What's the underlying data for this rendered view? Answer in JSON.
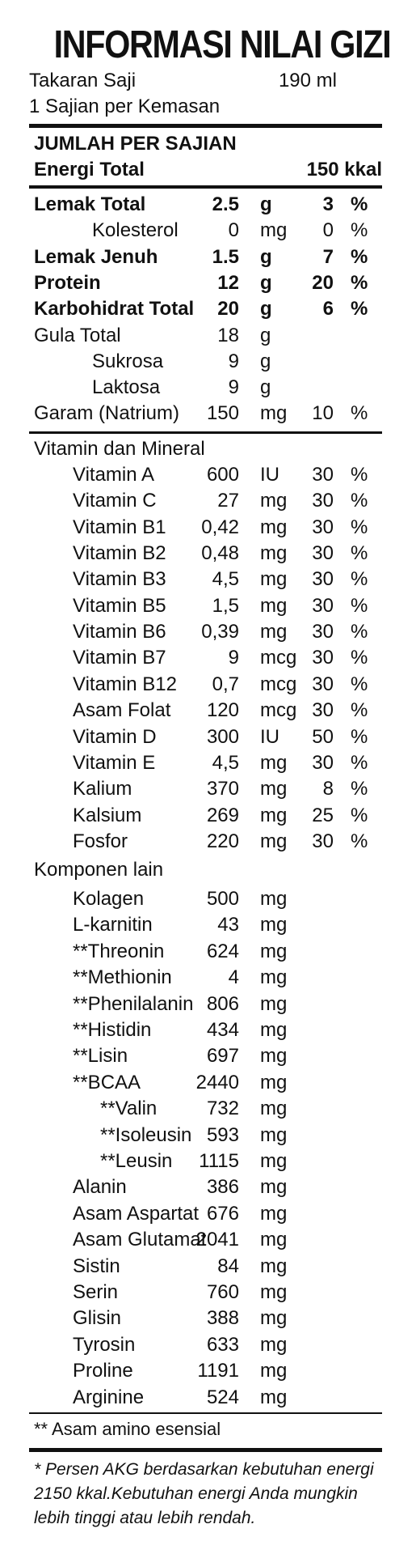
{
  "title": "INFORMASI NILAI GIZI",
  "serving": {
    "takaran_label": "Takaran Saji",
    "takaran_value": "190 ml",
    "sajian_label": "1 Sajian per Kemasan"
  },
  "jumlah_header": "JUMLAH PER SAJIAN",
  "energi": {
    "label": "Energi Total",
    "value": "150 kkal"
  },
  "main_rows": [
    {
      "label": "Lemak Total",
      "num": "2.5",
      "unit": "g",
      "pct": "3",
      "sign": "%",
      "bold": true,
      "indent": 0
    },
    {
      "label": "Kolesterol",
      "num": "0",
      "unit": "mg",
      "pct": "0",
      "sign": "%",
      "bold": false,
      "indent": 2
    },
    {
      "label": "Lemak Jenuh",
      "num": "1.5",
      "unit": "g",
      "pct": "7",
      "sign": "%",
      "bold": true,
      "indent": 0
    },
    {
      "label": "Protein",
      "num": "12",
      "unit": "g",
      "pct": "20",
      "sign": "%",
      "bold": true,
      "indent": 0
    },
    {
      "label": "Karbohidrat Total",
      "num": "20",
      "unit": "g",
      "pct": "6",
      "sign": "%",
      "bold": true,
      "indent": 0
    },
    {
      "label": "Gula Total",
      "num": "18",
      "unit": "g",
      "pct": "",
      "sign": "",
      "bold": false,
      "indent": 0
    },
    {
      "label": "Sukrosa",
      "num": "9",
      "unit": "g",
      "pct": "",
      "sign": "",
      "bold": false,
      "indent": 3
    },
    {
      "label": "Laktosa",
      "num": "9",
      "unit": "g",
      "pct": "",
      "sign": "",
      "bold": false,
      "indent": 3
    },
    {
      "label": "Garam (Natrium)",
      "num": "150",
      "unit": "mg",
      "pct": "10",
      "sign": "%",
      "bold": false,
      "indent": 0
    }
  ],
  "vitamin_header": "Vitamin dan Mineral",
  "vitamins": [
    {
      "label": "Vitamin A",
      "num": "600",
      "unit": "IU",
      "pct": "30",
      "sign": "%"
    },
    {
      "label": "Vitamin C",
      "num": "27",
      "unit": "mg",
      "pct": "30",
      "sign": "%"
    },
    {
      "label": "Vitamin B1",
      "num": "0,42",
      "unit": "mg",
      "pct": "30",
      "sign": "%"
    },
    {
      "label": "Vitamin B2",
      "num": "0,48",
      "unit": "mg",
      "pct": "30",
      "sign": "%"
    },
    {
      "label": "Vitamin B3",
      "num": "4,5",
      "unit": "mg",
      "pct": "30",
      "sign": "%"
    },
    {
      "label": "Vitamin B5",
      "num": "1,5",
      "unit": "mg",
      "pct": "30",
      "sign": "%"
    },
    {
      "label": "Vitamin B6",
      "num": "0,39",
      "unit": "mg",
      "pct": "30",
      "sign": "%"
    },
    {
      "label": "Vitamin B7",
      "num": "9",
      "unit": "mcg",
      "pct": "30",
      "sign": "%"
    },
    {
      "label": "Vitamin B12",
      "num": "0,7",
      "unit": "mcg",
      "pct": "30",
      "sign": "%"
    },
    {
      "label": "Asam Folat",
      "num": "120",
      "unit": "mcg",
      "pct": "30",
      "sign": "%"
    },
    {
      "label": "Vitamin D",
      "num": "300",
      "unit": "IU",
      "pct": "50",
      "sign": "%"
    },
    {
      "label": "Vitamin E",
      "num": "4,5",
      "unit": "mg",
      "pct": "30",
      "sign": "%"
    },
    {
      "label": "Kalium",
      "num": "370",
      "unit": "mg",
      "pct": "8",
      "sign": "%"
    },
    {
      "label": "Kalsium",
      "num": "269",
      "unit": "mg",
      "pct": "25",
      "sign": "%"
    },
    {
      "label": "Fosfor",
      "num": "220",
      "unit": "mg",
      "pct": "30",
      "sign": "%"
    }
  ],
  "komponen_header": "Komponen lain",
  "komponen": [
    {
      "label": "Kolagen",
      "num": "500",
      "unit": "mg",
      "indent": 1
    },
    {
      "label": "L-karnitin",
      "num": "43",
      "unit": "mg",
      "indent": 1
    },
    {
      "label": "**Threonin",
      "num": "624",
      "unit": "mg",
      "indent": 1
    },
    {
      "label": "**Methionin",
      "num": "4",
      "unit": "mg",
      "indent": 1
    },
    {
      "label": "**Phenilalanin",
      "num": "806",
      "unit": "mg",
      "indent": 1
    },
    {
      "label": "**Histidin",
      "num": "434",
      "unit": "mg",
      "indent": 1
    },
    {
      "label": "**Lisin",
      "num": "697",
      "unit": "mg",
      "indent": 1
    },
    {
      "label": "**BCAA",
      "num": "2440",
      "unit": "mg",
      "indent": 1
    },
    {
      "label": "**Valin",
      "num": "732",
      "unit": "mg",
      "indent": 2
    },
    {
      "label": "**Isoleusin",
      "num": "593",
      "unit": "mg",
      "indent": 2
    },
    {
      "label": "**Leusin",
      "num": "1115",
      "unit": "mg",
      "indent": 2
    },
    {
      "label": "Alanin",
      "num": "386",
      "unit": "mg",
      "indent": 1
    },
    {
      "label": "Asam Aspartat",
      "num": "676",
      "unit": "mg",
      "indent": 1
    },
    {
      "label": "Asam Glutamat",
      "num": "2041",
      "unit": "mg",
      "indent": 1
    },
    {
      "label": "Sistin",
      "num": "84",
      "unit": "mg",
      "indent": 1
    },
    {
      "label": "Serin",
      "num": "760",
      "unit": "mg",
      "indent": 1
    },
    {
      "label": "Glisin",
      "num": "388",
      "unit": "mg",
      "indent": 1
    },
    {
      "label": "Tyrosin",
      "num": "633",
      "unit": "mg",
      "indent": 1
    },
    {
      "label": "Proline",
      "num": "1191",
      "unit": "mg",
      "indent": 1
    },
    {
      "label": "Arginine",
      "num": "524",
      "unit": "mg",
      "indent": 1
    }
  ],
  "note_essential": "** Asam amino esensial",
  "footnote": "* Persen AKG berdasarkan kebutuhan energi 2150 kkal.Kebutuhan energi Anda mungkin lebih tinggi atau lebih rendah."
}
